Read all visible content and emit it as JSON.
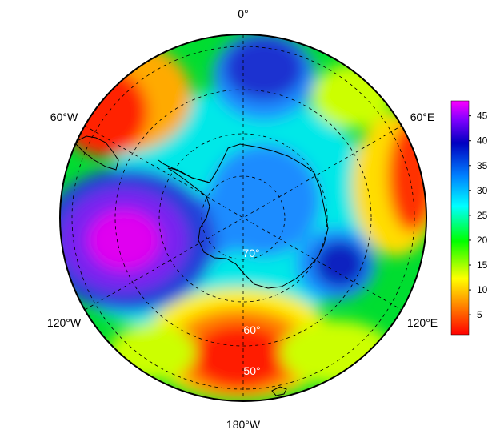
{
  "map": {
    "projection": "south-polar stereographic",
    "longitude_labels": {
      "top": "0°",
      "upper_left": "60°W",
      "upper_right": "60°E",
      "lower_left": "120°W",
      "lower_right": "120°E",
      "bottom": "180°W"
    },
    "latitude_labels": [
      "60°",
      "50°"
    ],
    "center_label": "70°",
    "gridlines": "dashed",
    "coastlines": "Antarctica, South America, Australia",
    "features": [
      {
        "region": "South Pacific (120°W–150°W)",
        "level": "maximum",
        "value_approx": 45
      },
      {
        "region": "Atlantic sector near 0°",
        "level": "high",
        "value_approx": 38
      },
      {
        "region": "East Antarctic coast near 100°E",
        "level": "high",
        "value_approx": 38
      },
      {
        "region": "Pacific near 180°",
        "level": "low",
        "value_approx": 3
      },
      {
        "region": "South America / Drake Passage",
        "level": "low",
        "value_approx": 3
      },
      {
        "region": "Indian Ocean near 60°E",
        "level": "low",
        "value_approx": 5
      }
    ]
  },
  "colorbar": {
    "ticks": [
      "5",
      "10",
      "15",
      "20",
      "25",
      "30",
      "35",
      "40",
      "45"
    ],
    "range": [
      1,
      48
    ],
    "colors": [
      "#ff0000",
      "#ff8000",
      "#ffff00",
      "#00ff00",
      "#00ffff",
      "#0080ff",
      "#0000c0",
      "#8000ff",
      "#ff00ff"
    ]
  }
}
